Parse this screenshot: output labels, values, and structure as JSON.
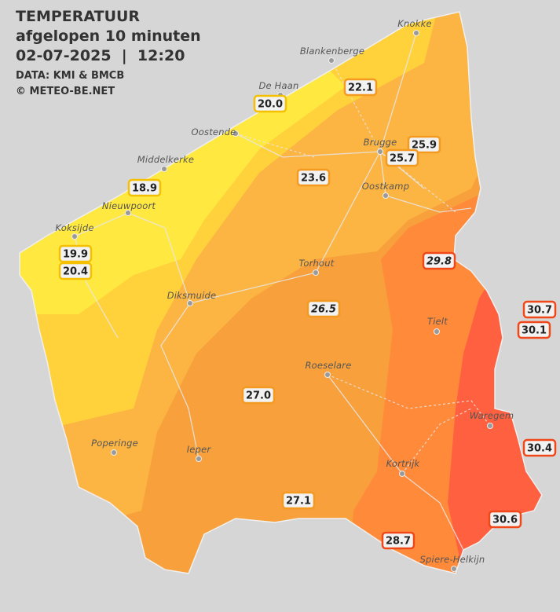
{
  "header": {
    "title": "TEMPERATUUR",
    "subtitle": "afgelopen 10 minuten",
    "datetime": "02-07-2025  |  12:20",
    "source": "DATA: KMI & BMCB",
    "copyright": "© METEO-BE.NET"
  },
  "cities": [
    "Knokke",
    "Blankenberge",
    "De Haan",
    "Oostende",
    "Middelkerke",
    "Brugge",
    "Oostkamp",
    "Nieuwpoort",
    "Koksijde",
    "Torhout",
    "Diksmuide",
    "Tielt",
    "Roeselare",
    "Waregem",
    "Poperinge",
    "Ieper",
    "Kortrijk",
    "Spiere-Helkijn"
  ],
  "readings": [
    "22.1",
    "20.0",
    "25.9",
    "25.7",
    "18.9",
    "23.6",
    "19.9",
    "20.4",
    "29.8",
    "26.5",
    "30.7",
    "30.1",
    "27.0",
    "30.4",
    "27.1",
    "30.6",
    "28.7"
  ]
}
